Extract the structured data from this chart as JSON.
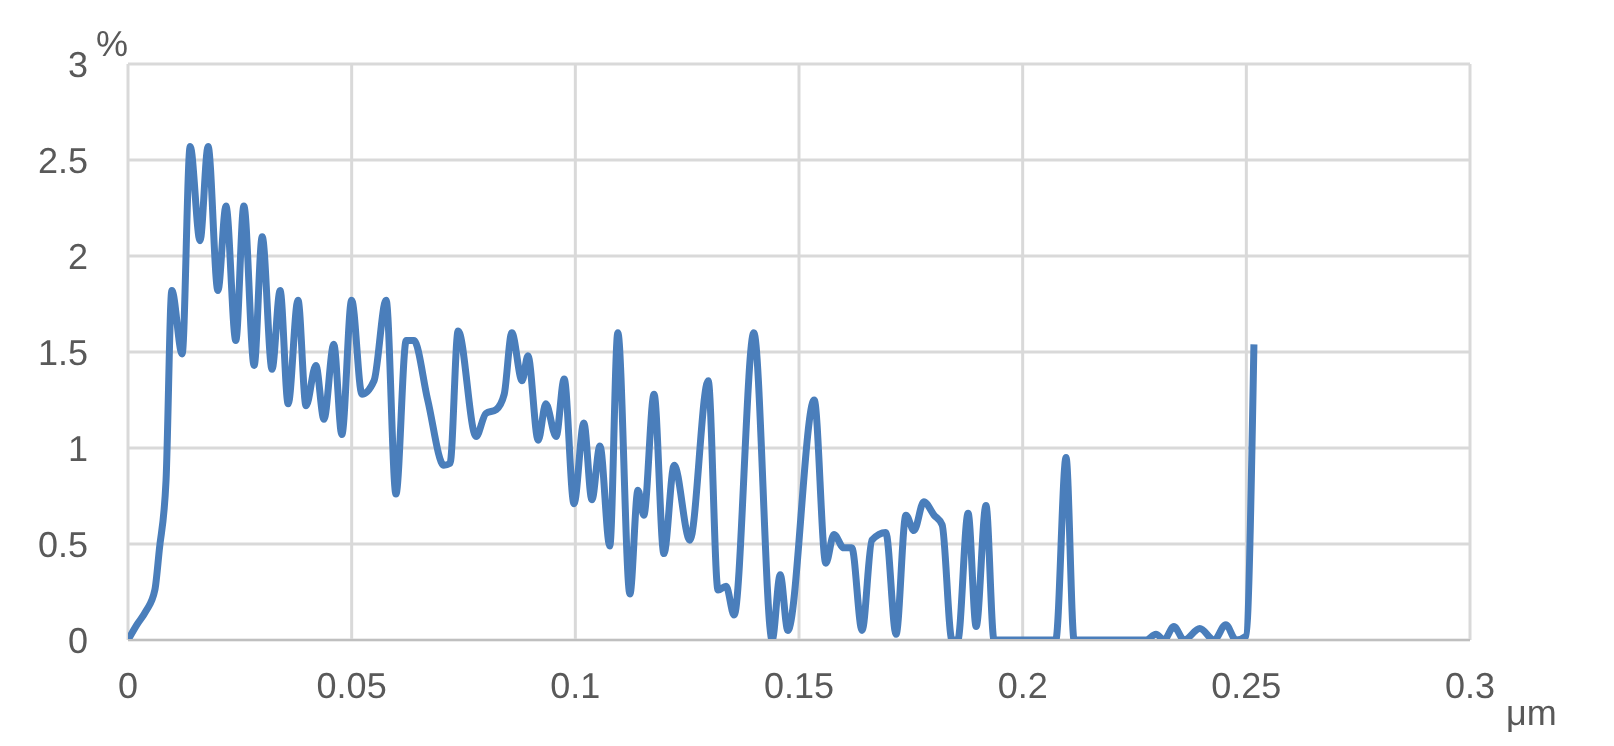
{
  "chart_data": {
    "type": "line",
    "xlabel": "μm",
    "ylabel": "%",
    "x": [
      0,
      0.002,
      0.004,
      0.006,
      0.007,
      0.0085,
      0.0098,
      0.0121,
      0.0139,
      0.0161,
      0.0179,
      0.0201,
      0.0219,
      0.0241,
      0.0259,
      0.0282,
      0.03,
      0.0322,
      0.034,
      0.0358,
      0.038,
      0.0398,
      0.042,
      0.0438,
      0.046,
      0.0478,
      0.05,
      0.0523,
      0.055,
      0.0577,
      0.0599,
      0.0622,
      0.0639,
      0.067,
      0.0706,
      0.072,
      0.0738,
      0.0778,
      0.08,
      0.0823,
      0.0841,
      0.0858,
      0.0881,
      0.0894,
      0.0917,
      0.0934,
      0.0957,
      0.0975,
      0.0997,
      0.1019,
      0.1037,
      0.1055,
      0.1077,
      0.1095,
      0.1122,
      0.114,
      0.1153,
      0.1176,
      0.1198,
      0.1221,
      0.1256,
      0.1297,
      0.1319,
      0.1337,
      0.1355,
      0.1399,
      0.144,
      0.1458,
      0.1475,
      0.1534,
      0.156,
      0.1578,
      0.16,
      0.1618,
      0.1641,
      0.1663,
      0.1694,
      0.1717,
      0.1739,
      0.1757,
      0.1779,
      0.1802,
      0.182,
      0.1842,
      0.1855,
      0.1878,
      0.1896,
      0.1918,
      0.1936,
      0.2074,
      0.2097,
      0.2115,
      0.2276,
      0.2298,
      0.2316,
      0.2338,
      0.2361,
      0.2396,
      0.2428,
      0.2454,
      0.2477,
      0.2499,
      0.2517
    ],
    "series": [
      {
        "color": "#4a7ebb",
        "values": [
          0,
          0.08,
          0.15,
          0.26,
          0.47,
          0.83,
          1.82,
          1.49,
          2.57,
          2.08,
          2.57,
          1.82,
          2.26,
          1.56,
          2.26,
          1.43,
          2.1,
          1.41,
          1.82,
          1.23,
          1.77,
          1.22,
          1.43,
          1.15,
          1.54,
          1.07,
          1.77,
          1.28,
          1.35,
          1.77,
          0.76,
          1.56,
          1.56,
          1.25,
          0.91,
          0.92,
          1.61,
          1.06,
          1.18,
          1.2,
          1.28,
          1.6,
          1.35,
          1.48,
          1.04,
          1.23,
          1.06,
          1.36,
          0.71,
          1.13,
          0.73,
          1.01,
          0.49,
          1.6,
          0.24,
          0.78,
          0.65,
          1.28,
          0.45,
          0.91,
          0.52,
          1.35,
          0.26,
          0.28,
          0.13,
          1.6,
          0,
          0.34,
          0.05,
          1.25,
          0.4,
          0.55,
          0.48,
          0.48,
          0.05,
          0.52,
          0.56,
          0.03,
          0.65,
          0.57,
          0.72,
          0.65,
          0.6,
          0,
          0,
          0.66,
          0.07,
          0.7,
          0,
          0,
          0.95,
          0,
          0,
          0.03,
          0,
          0.07,
          0,
          0.06,
          0,
          0.08,
          0,
          0.02,
          1.54
        ]
      }
    ],
    "xlim": [
      0,
      0.3
    ],
    "xticks": [
      0,
      0.05,
      0.1,
      0.15,
      0.2,
      0.25,
      0.3
    ],
    "ylim": [
      0,
      3
    ],
    "yticks": [
      0,
      0.5,
      1,
      1.5,
      2,
      2.5,
      3
    ],
    "grid": true,
    "marker": "none",
    "line_style": "solid"
  }
}
